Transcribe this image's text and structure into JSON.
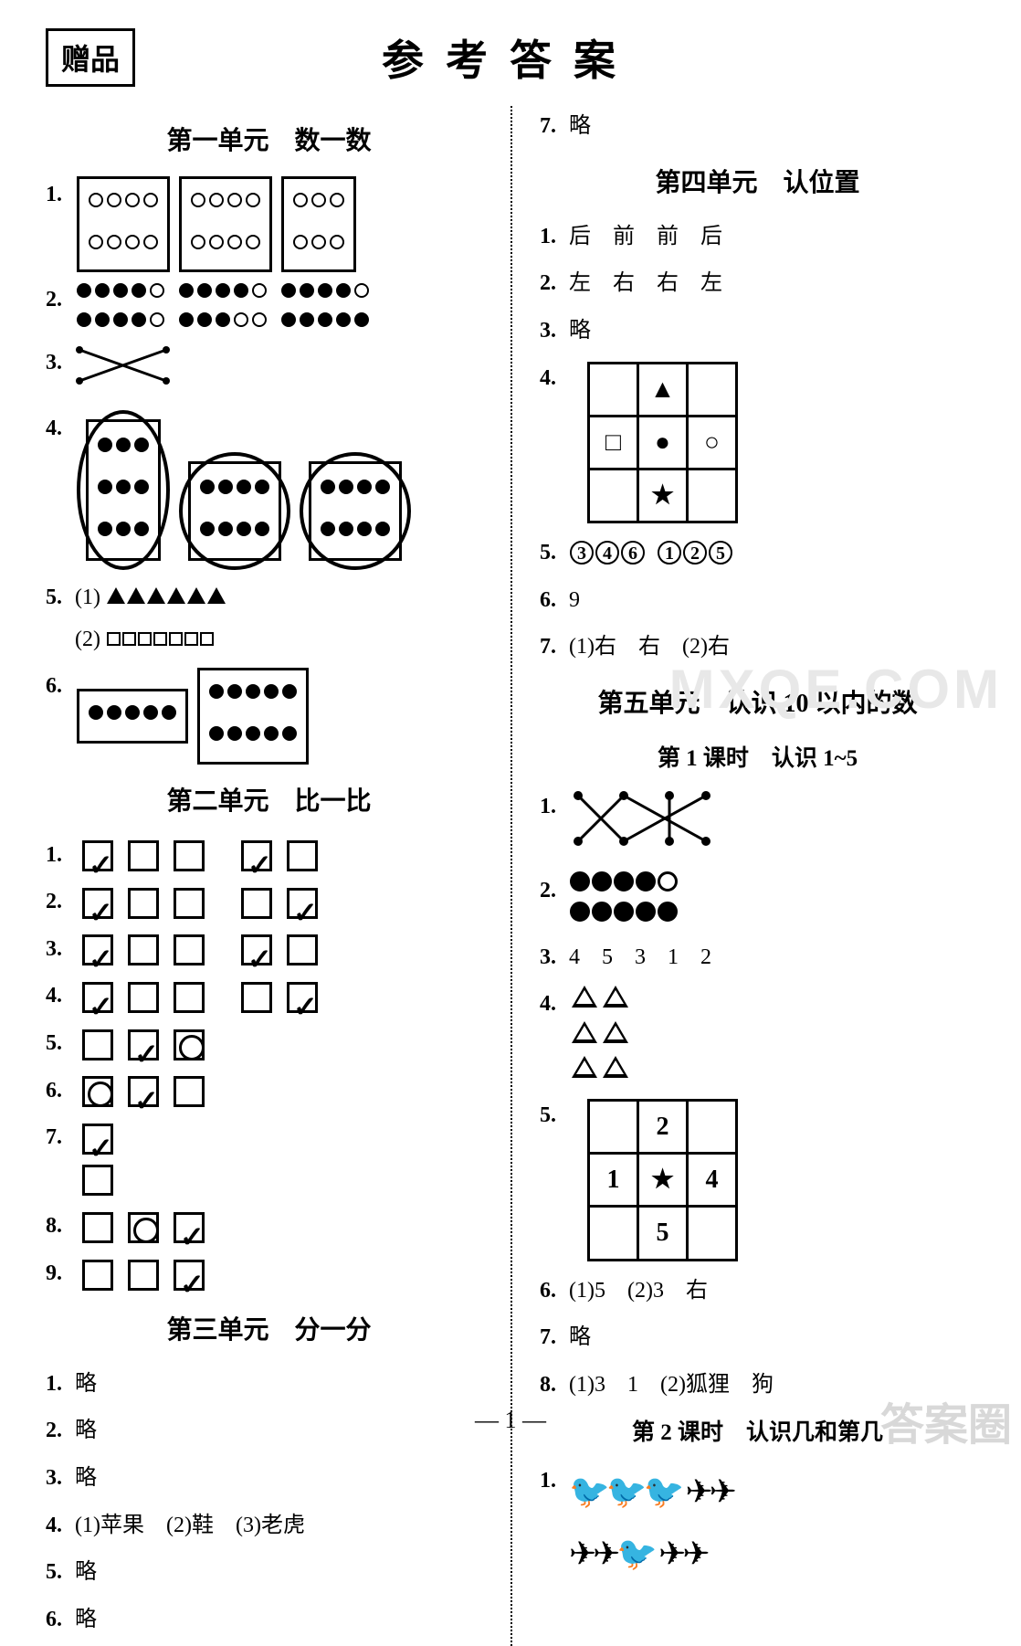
{
  "header": {
    "gift": "赠品",
    "title": "参考答案"
  },
  "left": {
    "unit1_title": "第一单元　数一数",
    "q5_1": "(1)",
    "q5_2": "(2)",
    "unit2_title": "第二单元　比一比",
    "unit2_rows": [
      [
        "chk",
        "",
        "",
        " ",
        "chk",
        ""
      ],
      [
        "chk",
        "",
        "",
        " ",
        "",
        "chk"
      ],
      [
        "chk",
        "",
        "",
        " ",
        "chk",
        ""
      ],
      [
        "chk",
        "",
        "",
        " ",
        "",
        "chk"
      ],
      [
        "",
        "chk",
        "circ"
      ],
      [
        "circ",
        "chk",
        ""
      ],
      [
        "chk"
      ],
      [
        "",
        "circ",
        "chk"
      ],
      [
        "",
        "",
        "chk"
      ]
    ],
    "unit3_title": "第三单元　分一分",
    "u3": [
      "略",
      "略",
      "略",
      "(1)苹果　(2)鞋　(3)老虎",
      "略",
      "略"
    ]
  },
  "right": {
    "q7": "略",
    "unit4_title": "第四单元　认位置",
    "u4_1": "后　前　前　后",
    "u4_2": "左　右　右　左",
    "u4_3": "略",
    "u4_grid": [
      [
        "",
        "▲",
        ""
      ],
      [
        "□",
        "●",
        "○"
      ],
      [
        "",
        "★",
        ""
      ]
    ],
    "u4_5a": [
      "3",
      "4",
      "6"
    ],
    "u4_5b": [
      "1",
      "2",
      "5"
    ],
    "u4_6": "9",
    "u4_7": "(1)右　右　(2)右",
    "unit5_title": "第五单元　认识 10 以内的数",
    "lesson1": "第 1 课时　认识 1~5",
    "u5_3": "4　5　3　1　2",
    "u5_grid": [
      [
        "",
        "2",
        ""
      ],
      [
        "1",
        "★",
        "4"
      ],
      [
        "",
        "5",
        ""
      ]
    ],
    "u5_6": "(1)5　(2)3　右",
    "u5_7": "略",
    "u5_8": "(1)3　1　(2)狐狸　狗",
    "lesson2": "第 2 课时　认识几和第几"
  },
  "page": "— 1 —",
  "wm1": "MXQE.COM",
  "wm2": "答案圈"
}
